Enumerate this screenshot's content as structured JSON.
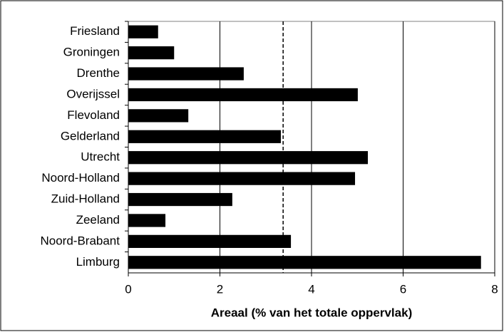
{
  "chart_data": {
    "type": "barh",
    "xlabel": "Areaal (% van het totale oppervlak)",
    "categories": [
      "Friesland",
      "Groningen",
      "Drenthe",
      "Overijssel",
      "Flevoland",
      "Gelderland",
      "Utrecht",
      "Noord-Holland",
      "Zuid-Holland",
      "Zeeland",
      "Noord-Brabant",
      "Limburg"
    ],
    "values": [
      0.65,
      1.0,
      2.52,
      5.01,
      1.31,
      3.33,
      5.23,
      4.95,
      2.27,
      0.81,
      3.55,
      7.7
    ],
    "color": "#000000",
    "reference_line": 3.38,
    "xlim": [
      0,
      8
    ],
    "xticks": [
      0,
      2,
      4,
      6,
      8
    ],
    "grid": true
  }
}
